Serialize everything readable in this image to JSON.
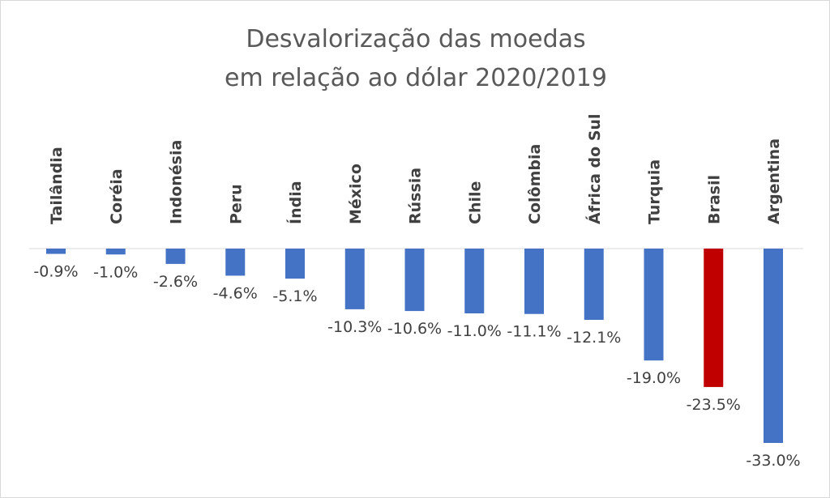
{
  "chart_data": {
    "type": "bar",
    "title_lines": [
      "Desvalorização das moedas",
      "em relação ao dólar 2020/2019"
    ],
    "categories": [
      "Tailândia",
      "Coréia",
      "Indonésia",
      "Peru",
      "Índia",
      "México",
      "Rússia",
      "Chile",
      "Colômbia",
      "África do Sul",
      "Turquia",
      "Brasil",
      "Argentina"
    ],
    "values": [
      -0.9,
      -1.0,
      -2.6,
      -4.6,
      -5.1,
      -10.3,
      -10.6,
      -11.0,
      -11.1,
      -12.1,
      -19.0,
      -23.5,
      -33.0
    ],
    "data_labels": [
      "-0.9%",
      "-1.0%",
      "-2.6%",
      "-4.6%",
      "-5.1%",
      "-10.3%",
      "-10.6%",
      "-11.0%",
      "-11.1%",
      "-12.1%",
      "-19.0%",
      "-23.5%",
      "-33.0%"
    ],
    "highlight_category": "Brasil",
    "colors": {
      "bar": "#4472C4",
      "highlight": "#C00000",
      "axis": "#d9d9d9",
      "label": "#404040",
      "title": "#595959"
    },
    "grid": false,
    "legend": "none"
  }
}
